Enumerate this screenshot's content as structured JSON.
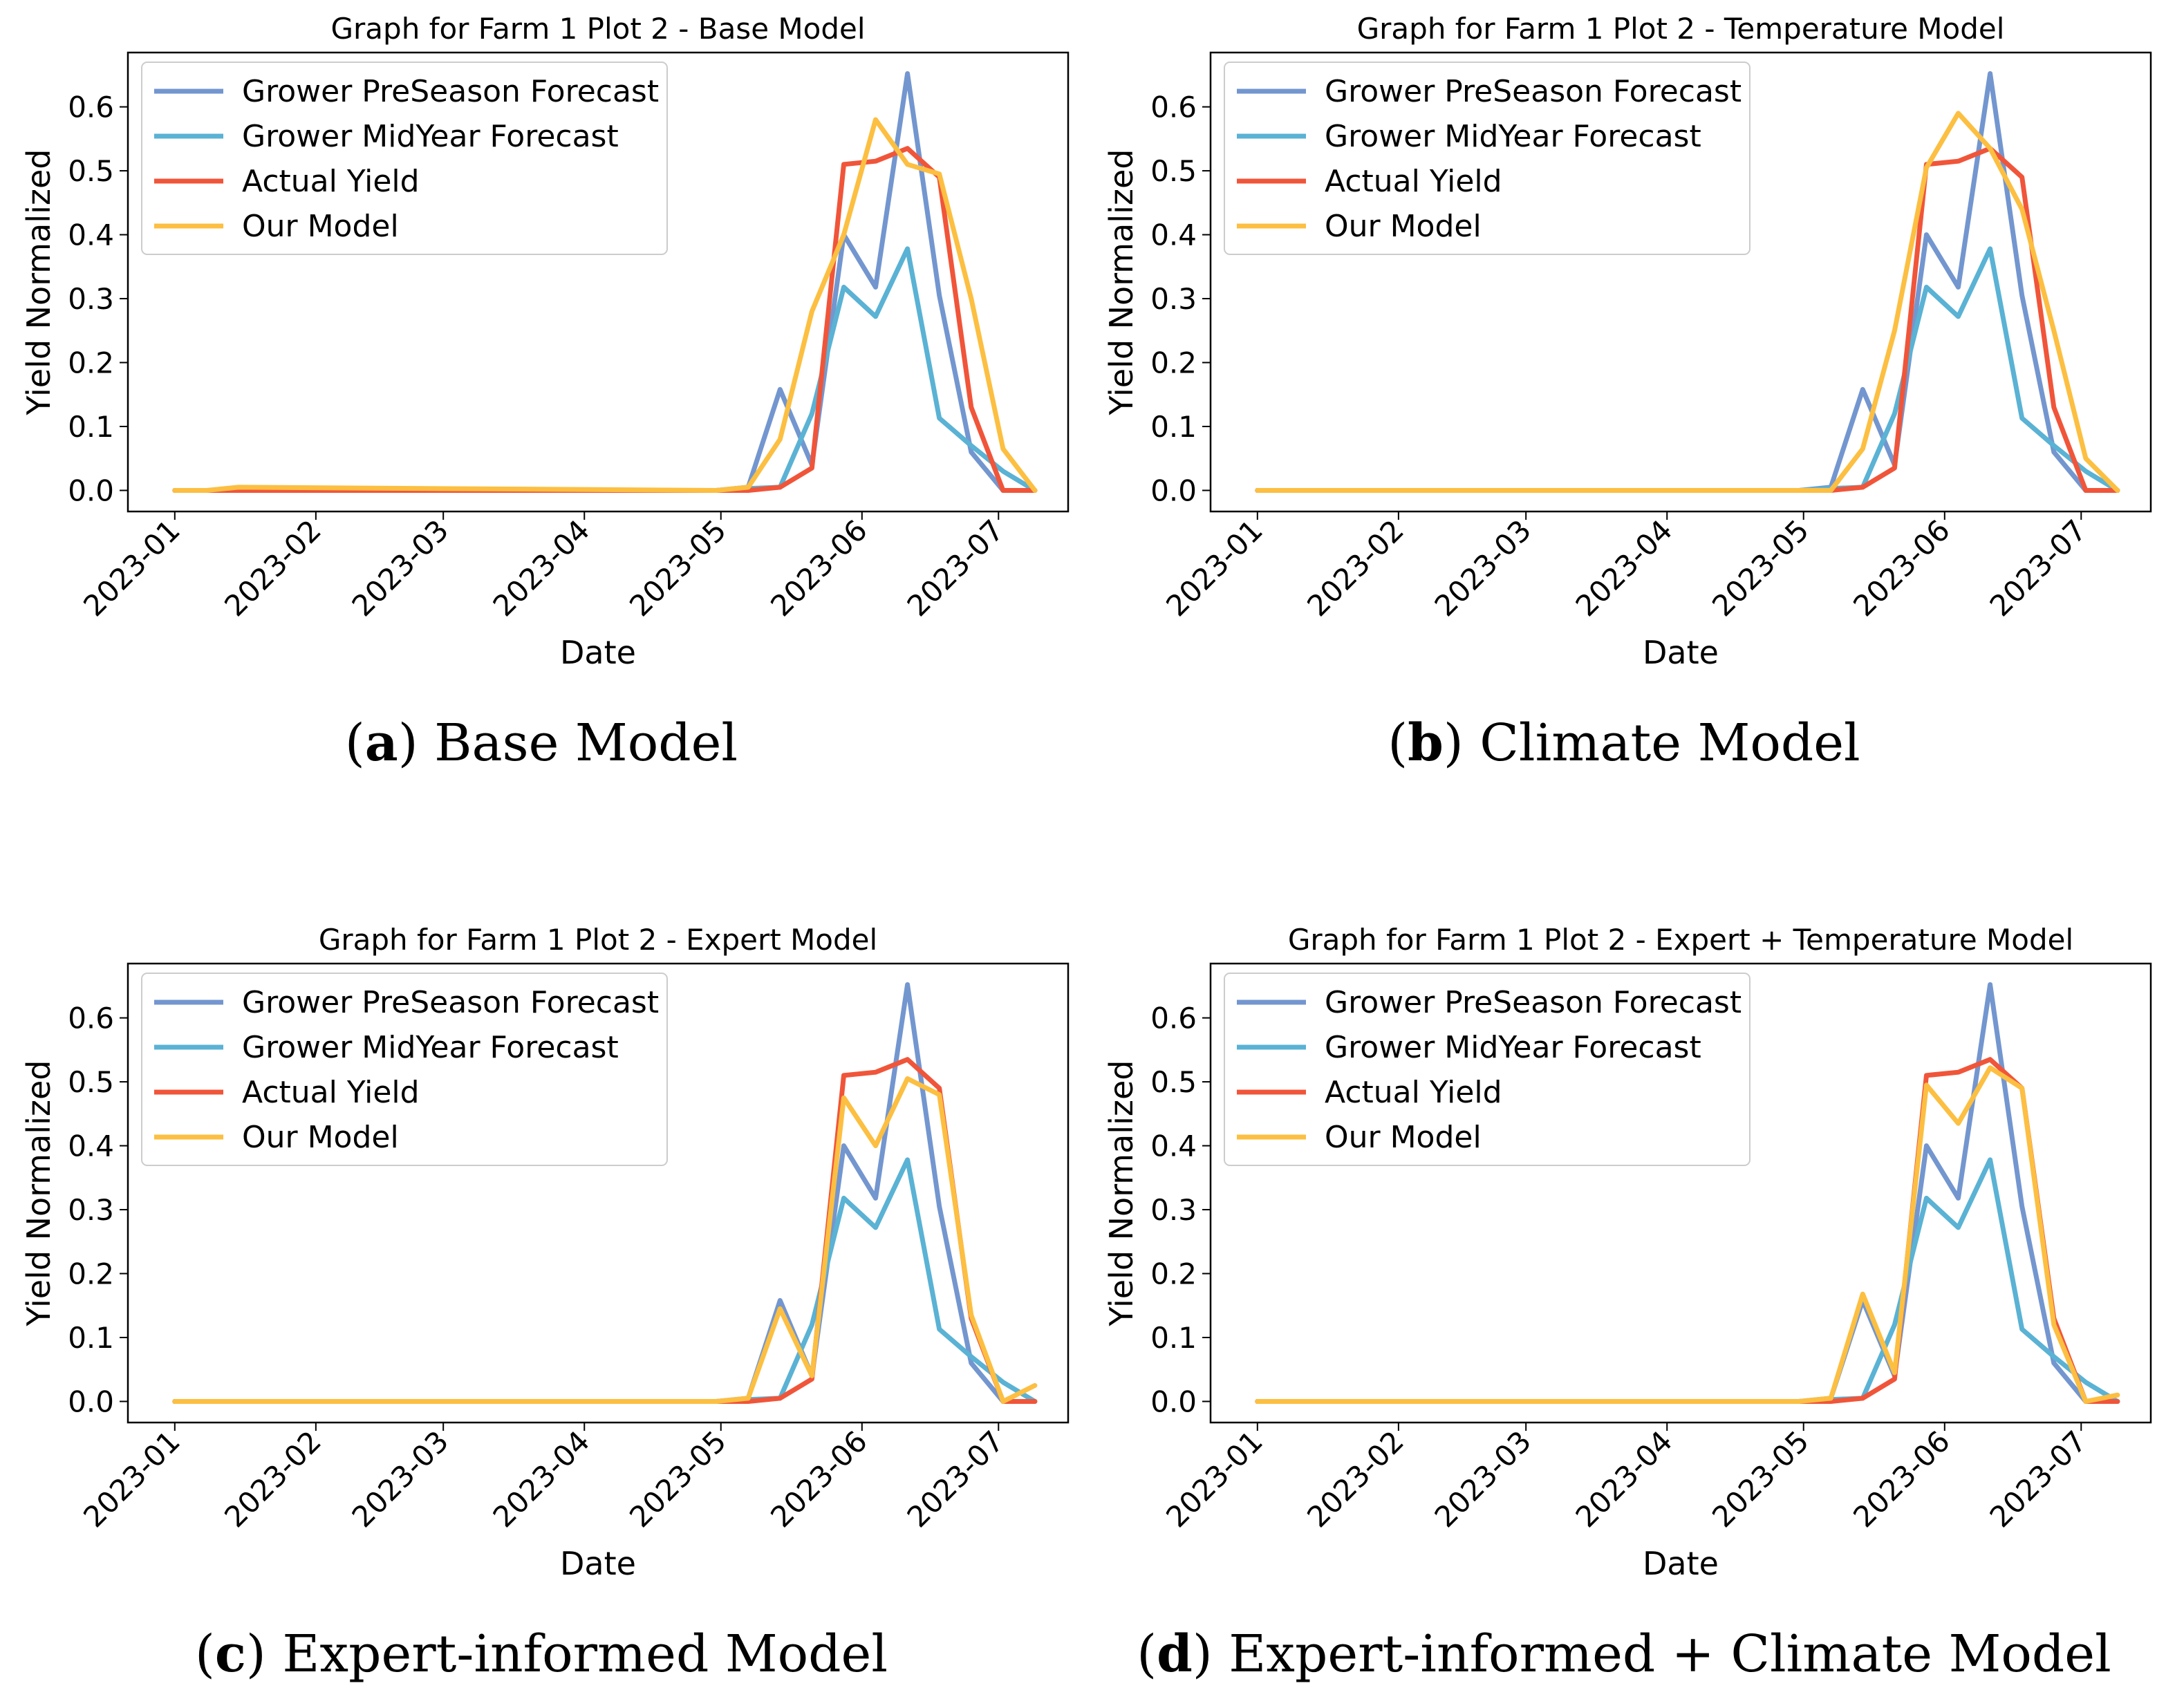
{
  "figure": {
    "captions": [
      {
        "letter": "a",
        "open": "(",
        "close": ")",
        "text": "Base Model"
      },
      {
        "letter": "b",
        "open": "(",
        "close": ")",
        "text": "Climate Model"
      },
      {
        "letter": "c",
        "open": "(",
        "close": ")",
        "text": "Expert-informed Model"
      },
      {
        "letter": "d",
        "open": "(",
        "close": ")",
        "text": "Expert-informed + Climate Model"
      }
    ]
  },
  "chart_data": [
    {
      "type": "line",
      "title": "Graph for Farm 1 Plot 2 - Base Model",
      "xlabel": "Date",
      "ylabel": "Yield Normalized",
      "x_ticks": [
        "2023-01",
        "2023-02",
        "2023-03",
        "2023-04",
        "2023-05",
        "2023-06",
        "2023-07"
      ],
      "y_ticks": [
        "0.0",
        "0.1",
        "0.2",
        "0.3",
        "0.4",
        "0.5",
        "0.6"
      ],
      "ylim": [
        -0.033,
        0.685
      ],
      "x_unit": "days since 2023-01-01",
      "xlim": [
        -10.3,
        196.3
      ],
      "legend_position": "top-left",
      "series": [
        {
          "name": "Grower PreSeason Forecast",
          "color": "#7396cf",
          "x": [
            0,
            7,
            14,
            119,
            126,
            133,
            140,
            147,
            154,
            161,
            168,
            175,
            182,
            189
          ],
          "y": [
            0,
            0,
            0,
            0,
            0.005,
            0.158,
            0.04,
            0.4,
            0.318,
            0.652,
            0.305,
            0.06,
            0,
            0
          ]
        },
        {
          "name": "Grower MidYear Forecast",
          "color": "#5ab2d4",
          "x": [
            0,
            7,
            14,
            119,
            126,
            133,
            140,
            147,
            154,
            161,
            168,
            175,
            182,
            189
          ],
          "y": [
            0,
            0,
            0,
            0,
            0.003,
            0.005,
            0.12,
            0.318,
            0.272,
            0.378,
            0.113,
            0.07,
            0.03,
            0
          ]
        },
        {
          "name": "Actual Yield",
          "color": "#f0553a",
          "x": [
            0,
            7,
            14,
            119,
            126,
            133,
            140,
            147,
            154,
            161,
            168,
            175,
            182,
            189
          ],
          "y": [
            0,
            0,
            0,
            0,
            0,
            0.005,
            0.035,
            0.51,
            0.515,
            0.535,
            0.49,
            0.13,
            0,
            0
          ]
        },
        {
          "name": "Our Model",
          "color": "#fcbf41",
          "x": [
            0,
            7,
            14,
            119,
            126,
            133,
            140,
            147,
            154,
            161,
            168,
            175,
            182,
            189
          ],
          "y": [
            0,
            0,
            0.005,
            0,
            0.005,
            0.08,
            0.28,
            0.4,
            0.58,
            0.51,
            0.495,
            0.3,
            0.065,
            0
          ]
        }
      ]
    },
    {
      "type": "line",
      "title": "Graph for Farm 1 Plot 2 - Temperature Model",
      "xlabel": "Date",
      "ylabel": "Yield Normalized",
      "x_ticks": [
        "2023-01",
        "2023-02",
        "2023-03",
        "2023-04",
        "2023-05",
        "2023-06",
        "2023-07"
      ],
      "y_ticks": [
        "0.0",
        "0.1",
        "0.2",
        "0.3",
        "0.4",
        "0.5",
        "0.6"
      ],
      "ylim": [
        -0.033,
        0.685
      ],
      "x_unit": "days since 2023-01-01",
      "xlim": [
        -10.3,
        196.3
      ],
      "legend_position": "top-left",
      "series": [
        {
          "name": "Grower PreSeason Forecast",
          "color": "#7396cf",
          "x": [
            0,
            7,
            14,
            119,
            126,
            133,
            140,
            147,
            154,
            161,
            168,
            175,
            182,
            189
          ],
          "y": [
            0,
            0,
            0,
            0,
            0.005,
            0.158,
            0.04,
            0.4,
            0.318,
            0.652,
            0.305,
            0.06,
            0,
            0
          ]
        },
        {
          "name": "Grower MidYear Forecast",
          "color": "#5ab2d4",
          "x": [
            0,
            7,
            14,
            119,
            126,
            133,
            140,
            147,
            154,
            161,
            168,
            175,
            182,
            189
          ],
          "y": [
            0,
            0,
            0,
            0,
            0.003,
            0.005,
            0.12,
            0.318,
            0.272,
            0.378,
            0.113,
            0.07,
            0.03,
            0
          ]
        },
        {
          "name": "Actual Yield",
          "color": "#f0553a",
          "x": [
            0,
            7,
            14,
            119,
            126,
            133,
            140,
            147,
            154,
            161,
            168,
            175,
            182,
            189
          ],
          "y": [
            0,
            0,
            0,
            0,
            0,
            0.005,
            0.035,
            0.51,
            0.515,
            0.535,
            0.49,
            0.13,
            0,
            0
          ]
        },
        {
          "name": "Our Model",
          "color": "#fcbf41",
          "x": [
            0,
            7,
            14,
            119,
            126,
            133,
            140,
            147,
            154,
            161,
            168,
            175,
            182,
            189
          ],
          "y": [
            0,
            0,
            0,
            0,
            0,
            0.065,
            0.25,
            0.505,
            0.59,
            0.535,
            0.44,
            0.25,
            0.05,
            0
          ]
        }
      ]
    },
    {
      "type": "line",
      "title": "Graph for Farm 1 Plot 2 - Expert Model",
      "xlabel": "Date",
      "ylabel": "Yield Normalized",
      "x_ticks": [
        "2023-01",
        "2023-02",
        "2023-03",
        "2023-04",
        "2023-05",
        "2023-06",
        "2023-07"
      ],
      "y_ticks": [
        "0.0",
        "0.1",
        "0.2",
        "0.3",
        "0.4",
        "0.5",
        "0.6"
      ],
      "ylim": [
        -0.033,
        0.685
      ],
      "x_unit": "days since 2023-01-01",
      "xlim": [
        -10.3,
        196.3
      ],
      "legend_position": "top-left",
      "series": [
        {
          "name": "Grower PreSeason Forecast",
          "color": "#7396cf",
          "x": [
            0,
            7,
            14,
            119,
            126,
            133,
            140,
            147,
            154,
            161,
            168,
            175,
            182,
            189
          ],
          "y": [
            0,
            0,
            0,
            0,
            0.005,
            0.158,
            0.04,
            0.4,
            0.318,
            0.652,
            0.305,
            0.06,
            0,
            0
          ]
        },
        {
          "name": "Grower MidYear Forecast",
          "color": "#5ab2d4",
          "x": [
            0,
            7,
            14,
            119,
            126,
            133,
            140,
            147,
            154,
            161,
            168,
            175,
            182,
            189
          ],
          "y": [
            0,
            0,
            0,
            0,
            0.003,
            0.005,
            0.12,
            0.318,
            0.272,
            0.378,
            0.113,
            0.07,
            0.03,
            0
          ]
        },
        {
          "name": "Actual Yield",
          "color": "#f0553a",
          "x": [
            0,
            7,
            14,
            119,
            126,
            133,
            140,
            147,
            154,
            161,
            168,
            175,
            182,
            189
          ],
          "y": [
            0,
            0,
            0,
            0,
            0,
            0.005,
            0.035,
            0.51,
            0.515,
            0.535,
            0.49,
            0.13,
            0,
            0
          ]
        },
        {
          "name": "Our Model",
          "color": "#fcbf41",
          "x": [
            0,
            7,
            14,
            119,
            126,
            133,
            140,
            147,
            154,
            161,
            168,
            175,
            182,
            189
          ],
          "y": [
            0,
            0,
            0,
            0,
            0.005,
            0.145,
            0.04,
            0.475,
            0.4,
            0.505,
            0.48,
            0.135,
            0,
            0.025
          ]
        }
      ]
    },
    {
      "type": "line",
      "title": "Graph for Farm 1 Plot 2 - Expert + Temperature Model",
      "xlabel": "Date",
      "ylabel": "Yield Normalized",
      "x_ticks": [
        "2023-01",
        "2023-02",
        "2023-03",
        "2023-04",
        "2023-05",
        "2023-06",
        "2023-07"
      ],
      "y_ticks": [
        "0.0",
        "0.1",
        "0.2",
        "0.3",
        "0.4",
        "0.5",
        "0.6"
      ],
      "ylim": [
        -0.033,
        0.685
      ],
      "x_unit": "days since 2023-01-01",
      "xlim": [
        -10.3,
        196.3
      ],
      "legend_position": "top-left",
      "series": [
        {
          "name": "Grower PreSeason Forecast",
          "color": "#7396cf",
          "x": [
            0,
            7,
            14,
            119,
            126,
            133,
            140,
            147,
            154,
            161,
            168,
            175,
            182,
            189
          ],
          "y": [
            0,
            0,
            0,
            0,
            0.005,
            0.158,
            0.04,
            0.4,
            0.318,
            0.652,
            0.305,
            0.06,
            0,
            0
          ]
        },
        {
          "name": "Grower MidYear Forecast",
          "color": "#5ab2d4",
          "x": [
            0,
            7,
            14,
            119,
            126,
            133,
            140,
            147,
            154,
            161,
            168,
            175,
            182,
            189
          ],
          "y": [
            0,
            0,
            0,
            0,
            0.003,
            0.005,
            0.12,
            0.318,
            0.272,
            0.378,
            0.113,
            0.07,
            0.03,
            0
          ]
        },
        {
          "name": "Actual Yield",
          "color": "#f0553a",
          "x": [
            0,
            7,
            14,
            119,
            126,
            133,
            140,
            147,
            154,
            161,
            168,
            175,
            182,
            189
          ],
          "y": [
            0,
            0,
            0,
            0,
            0,
            0.005,
            0.035,
            0.51,
            0.515,
            0.535,
            0.49,
            0.13,
            0,
            0
          ]
        },
        {
          "name": "Our Model",
          "color": "#fcbf41",
          "x": [
            0,
            7,
            14,
            119,
            126,
            133,
            140,
            147,
            154,
            161,
            168,
            175,
            182,
            189
          ],
          "y": [
            0,
            0,
            0,
            0,
            0.005,
            0.168,
            0.045,
            0.495,
            0.435,
            0.522,
            0.49,
            0.12,
            0,
            0.01
          ]
        }
      ]
    }
  ]
}
